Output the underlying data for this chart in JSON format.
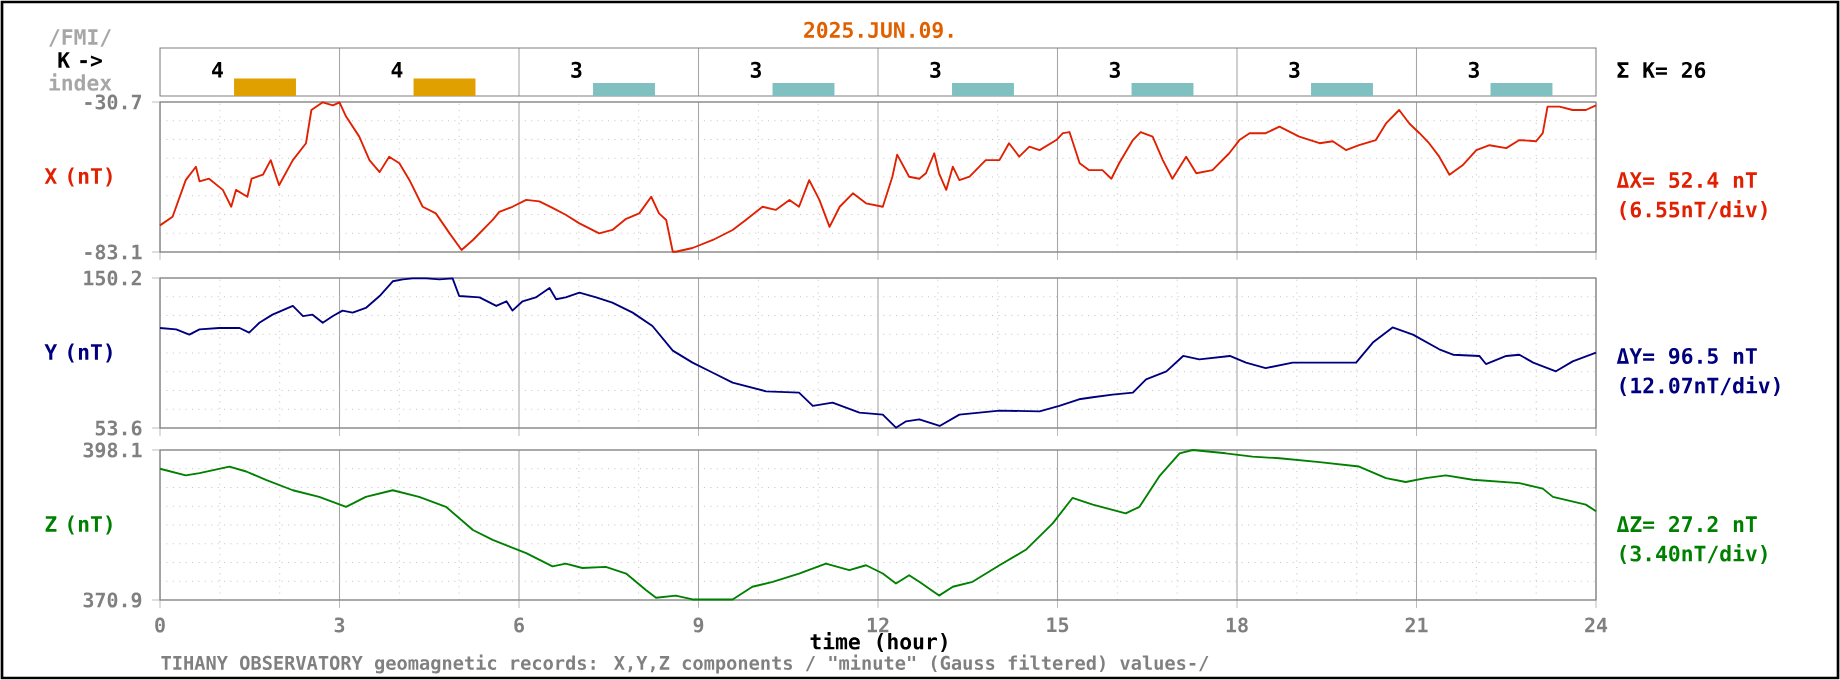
{
  "chart_data": [
    {
      "type": "bar",
      "title": "2025.JUN.09.",
      "ylabel": "K ->",
      "categories": [
        null,
        null,
        null,
        null,
        null,
        null,
        null,
        null
      ],
      "values": [
        4,
        4,
        3,
        3,
        3,
        3,
        3,
        3
      ],
      "colors": [
        "#e0a000",
        "#e0a000",
        "#80c0c0",
        "#80c0c0",
        "#80c0c0",
        "#80c0c0",
        "#80c0c0",
        "#80c0c0"
      ],
      "data_labels": true,
      "grid": "x",
      "tick_labels": false,
      "annotations": [
        "/FMI/",
        "index",
        "Σ K= 26"
      ]
    },
    {
      "type": "line",
      "ylabel": "X (nT)",
      "xlim": [
        0,
        24
      ],
      "xticks": [
        0,
        3,
        6,
        9,
        12,
        15,
        18,
        21,
        24
      ],
      "ylim": [
        -83.1,
        -30.7
      ],
      "yticks": [
        -83.1,
        -30.7
      ],
      "grid": true,
      "tick_labels": "y",
      "series": [
        {
          "color": "#e02000",
          "x": [
            0,
            0.21,
            0.43,
            0.6,
            0.66,
            0.82,
            1.05,
            1.19,
            1.27,
            1.46,
            1.53,
            1.72,
            1.85,
            1.99,
            2.22,
            2.44,
            2.53,
            2.72,
            2.89,
            3.0,
            3.11,
            3.33,
            3.5,
            3.67,
            3.83,
            4.0,
            4.17,
            4.39,
            4.61,
            4.84,
            5.04,
            5.23,
            5.56,
            5.67,
            5.89,
            6.12,
            6.34,
            6.56,
            6.78,
            7.01,
            7.34,
            7.56,
            7.79,
            8.01,
            8.21,
            8.34,
            8.46,
            8.57,
            8.62,
            8.9,
            9.24,
            9.57,
            9.79,
            10.07,
            10.29,
            10.52,
            10.68,
            10.85,
            11.02,
            11.19,
            11.36,
            11.58,
            11.8,
            12.08,
            12.24,
            12.32,
            12.52,
            12.69,
            12.8,
            12.94,
            13.02,
            13.14,
            13.25,
            13.36,
            13.53,
            13.8,
            14.03,
            14.19,
            14.36,
            14.53,
            14.7,
            14.98,
            15.09,
            15.2,
            15.37,
            15.53,
            15.75,
            15.9,
            16.03,
            16.26,
            16.39,
            16.59,
            16.76,
            16.92,
            17.15,
            17.32,
            17.59,
            17.87,
            18.04,
            18.21,
            18.48,
            18.71,
            19.04,
            19.38,
            19.6,
            19.82,
            20.04,
            20.32,
            20.49,
            20.71,
            20.88,
            21.05,
            21.21,
            21.38,
            21.55,
            21.77,
            22.0,
            22.22,
            22.5,
            22.72,
            23.0,
            23.11,
            23.19,
            23.39,
            23.61,
            23.83,
            24.0
          ],
          "values": [
            -73.8,
            -70.8,
            -58.0,
            -53.3,
            -58.4,
            -57.5,
            -61.4,
            -67.3,
            -61.4,
            -63.8,
            -57.5,
            -56.1,
            -51.0,
            -59.8,
            -51.0,
            -45.1,
            -33.5,
            -30.8,
            -31.9,
            -30.8,
            -35.8,
            -42.8,
            -51.0,
            -55.2,
            -49.8,
            -52.1,
            -58.0,
            -67.3,
            -69.6,
            -76.6,
            -82.4,
            -78.9,
            -71.9,
            -69.1,
            -67.3,
            -64.9,
            -65.4,
            -67.7,
            -70.1,
            -73.1,
            -76.6,
            -75.4,
            -71.5,
            -69.6,
            -63.8,
            -69.6,
            -71.9,
            -83.0,
            -83.0,
            -81.7,
            -78.9,
            -75.4,
            -71.9,
            -67.3,
            -68.4,
            -64.9,
            -67.3,
            -58.0,
            -64.9,
            -74.3,
            -67.3,
            -62.6,
            -66.1,
            -67.3,
            -56.8,
            -49.1,
            -56.8,
            -57.5,
            -55.6,
            -48.6,
            -55.6,
            -61.4,
            -53.3,
            -58.0,
            -56.8,
            -51.0,
            -51.0,
            -45.1,
            -49.8,
            -46.3,
            -47.5,
            -44.0,
            -41.6,
            -41.2,
            -52.1,
            -54.5,
            -54.5,
            -57.5,
            -52.1,
            -44.0,
            -41.2,
            -42.8,
            -51.0,
            -57.5,
            -49.8,
            -55.6,
            -54.5,
            -48.6,
            -44.0,
            -41.6,
            -41.6,
            -39.3,
            -42.8,
            -45.1,
            -44.4,
            -47.5,
            -45.8,
            -44.0,
            -38.2,
            -33.5,
            -38.2,
            -41.6,
            -45.1,
            -49.8,
            -56.1,
            -52.8,
            -47.5,
            -45.8,
            -46.8,
            -44.0,
            -44.4,
            -41.6,
            -32.3,
            -32.3,
            -33.5,
            -33.5,
            -31.9
          ]
        }
      ],
      "annotations": [
        "ΔX= 52.4 nT",
        "(6.55nT/div)"
      ]
    },
    {
      "type": "line",
      "ylabel": "Y (nT)",
      "xlim": [
        0,
        24
      ],
      "xticks": [
        0,
        3,
        6,
        9,
        12,
        15,
        18,
        21,
        24
      ],
      "ylim": [
        53.6,
        150.2
      ],
      "yticks": [
        53.6,
        150.2
      ],
      "grid": true,
      "tick_labels": "y",
      "series": [
        {
          "color": "#00007f",
          "x": [
            0,
            0.27,
            0.49,
            0.66,
            0.99,
            1.33,
            1.49,
            1.66,
            1.88,
            2.22,
            2.39,
            2.55,
            2.72,
            2.89,
            3.05,
            3.22,
            3.44,
            3.67,
            3.89,
            4.06,
            4.22,
            4.45,
            4.67,
            4.89,
            5.0,
            5.34,
            5.62,
            5.79,
            5.89,
            6.06,
            6.28,
            6.51,
            6.62,
            6.78,
            7.01,
            7.29,
            7.56,
            7.9,
            8.23,
            8.57,
            8.9,
            9.24,
            9.57,
            10.13,
            10.68,
            10.91,
            11.24,
            11.69,
            12.08,
            12.3,
            12.47,
            12.69,
            13.03,
            13.36,
            14.03,
            14.7,
            15.03,
            15.36,
            15.59,
            15.92,
            16.26,
            16.48,
            16.82,
            17.1,
            17.37,
            17.88,
            18.15,
            18.48,
            18.93,
            19.6,
            19.99,
            20.27,
            20.6,
            20.94,
            21.38,
            21.61,
            22.05,
            22.16,
            22.5,
            22.72,
            22.95,
            23.33,
            23.61,
            24.0
          ],
          "values": [
            118.0,
            117.1,
            113.7,
            117.1,
            118.0,
            118.0,
            115.0,
            121.4,
            126.6,
            132.2,
            125.7,
            126.6,
            121.4,
            125.7,
            129.2,
            127.9,
            130.9,
            138.6,
            148.1,
            149.3,
            150.0,
            150.0,
            149.3,
            150.0,
            138.6,
            137.7,
            132.2,
            135.2,
            129.2,
            135.2,
            137.7,
            143.8,
            136.5,
            137.7,
            140.8,
            137.7,
            134.3,
            127.9,
            119.3,
            103.4,
            95.7,
            89.2,
            82.8,
            77.2,
            76.4,
            67.8,
            69.9,
            63.5,
            62.2,
            53.8,
            57.9,
            59.2,
            54.9,
            62.2,
            64.8,
            64.3,
            67.8,
            72.1,
            73.4,
            75.1,
            76.4,
            84.9,
            90.1,
            100.0,
            97.8,
            100.0,
            95.7,
            92.2,
            95.7,
            95.7,
            95.7,
            108.6,
            118.4,
            113.7,
            104.3,
            100.8,
            100.0,
            94.8,
            100.0,
            100.8,
            95.7,
            90.1,
            96.5,
            102.1
          ]
        }
      ],
      "annotations": [
        "ΔY= 96.5 nT",
        "(12.07nT/div)"
      ]
    },
    {
      "type": "line",
      "ylabel": "Z (nT)",
      "xlabel": "time (hour)",
      "xlim": [
        0,
        24
      ],
      "xticks": [
        0,
        3,
        6,
        9,
        12,
        15,
        18,
        21,
        24
      ],
      "ylim": [
        370.9,
        398.1
      ],
      "yticks": [
        370.9,
        398.1
      ],
      "grid": true,
      "series": [
        {
          "color": "#008000",
          "x": [
            0,
            0.43,
            0.66,
            1.16,
            1.44,
            1.77,
            2.22,
            2.66,
            3.11,
            3.44,
            3.89,
            4.33,
            4.78,
            5.23,
            5.56,
            6.12,
            6.56,
            6.78,
            7.06,
            7.45,
            7.79,
            8.12,
            8.29,
            8.62,
            8.9,
            9.24,
            9.57,
            9.9,
            10.24,
            10.68,
            11.13,
            11.52,
            11.8,
            12.08,
            12.3,
            12.52,
            12.69,
            13.02,
            13.25,
            13.58,
            14.03,
            14.47,
            14.92,
            15.25,
            15.59,
            16.14,
            16.37,
            16.7,
            17.04,
            17.26,
            17.81,
            18.26,
            18.71,
            19.38,
            20.04,
            20.49,
            20.82,
            21.15,
            21.49,
            21.94,
            22.72,
            23.11,
            23.28,
            23.83,
            24.0
          ],
          "values": [
            394.7,
            393.5,
            393.9,
            395.1,
            394.2,
            392.7,
            390.8,
            389.6,
            387.8,
            389.6,
            390.8,
            389.6,
            387.8,
            383.6,
            381.8,
            379.4,
            377.0,
            377.5,
            376.7,
            376.9,
            375.7,
            372.7,
            371.3,
            371.7,
            371.0,
            371.0,
            371.0,
            373.3,
            374.2,
            375.7,
            377.5,
            376.3,
            377.2,
            375.7,
            373.9,
            375.4,
            374.2,
            371.7,
            373.3,
            374.2,
            377.2,
            380.0,
            384.8,
            389.4,
            388.2,
            386.6,
            387.8,
            393.3,
            397.5,
            398.1,
            397.5,
            396.9,
            396.6,
            395.9,
            395.1,
            393.0,
            392.3,
            393.0,
            393.5,
            392.7,
            392.1,
            391.1,
            389.6,
            388.2,
            387.0
          ]
        }
      ],
      "annotations": [
        "ΔZ= 27.2 nT",
        "(3.40nT/div)",
        "TIHANY OBSERVATORY   geomagnetic records:  X,Y,Z  components   / \"minute\" (Gauss filtered) values-/"
      ]
    }
  ]
}
